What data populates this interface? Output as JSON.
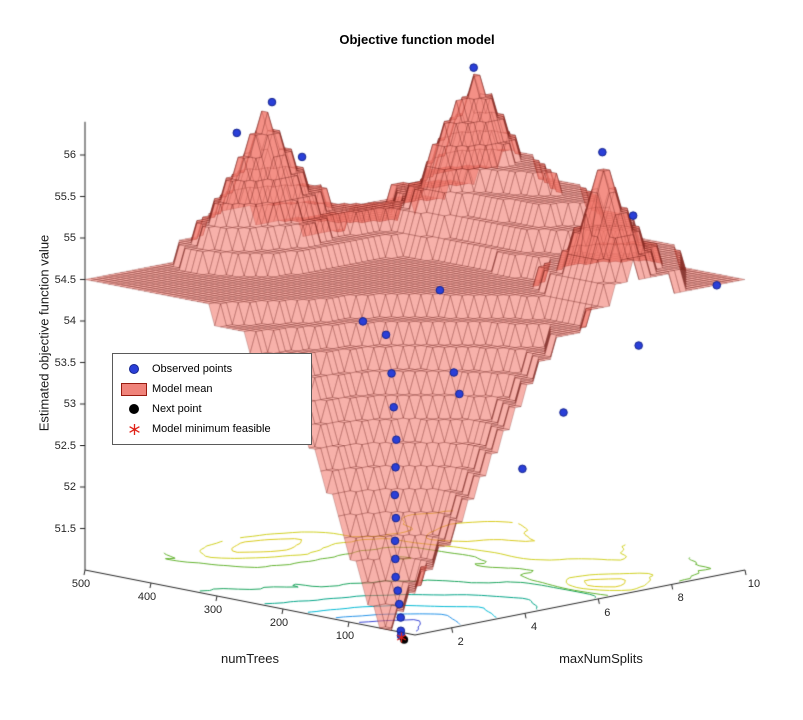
{
  "figure": {
    "title": "Objective function model",
    "background": "#ffffff"
  },
  "axes": {
    "xlabel": "numTrees",
    "ylabel": "maxNumSplits",
    "zlabel": "Estimated objective function value",
    "x_ticks": [
      500,
      400,
      300,
      200,
      100
    ],
    "y_ticks": [
      2,
      4,
      6,
      8,
      10
    ],
    "z_ticks": [
      51.5,
      52,
      52.5,
      53,
      53.5,
      54,
      54.5,
      55,
      55.5,
      56
    ],
    "x_range": [
      0,
      500
    ],
    "y_range": [
      1,
      10
    ],
    "z_range": [
      51,
      57
    ]
  },
  "legend": {
    "entries": [
      {
        "label": "Observed points",
        "marker": "blue-dot",
        "color": "#2a3fd8"
      },
      {
        "label": "Model mean",
        "marker": "patch",
        "color": "#f0837a"
      },
      {
        "label": "Next point",
        "marker": "black-dot",
        "color": "#000000"
      },
      {
        "label": "Model minimum feasible",
        "marker": "red-asterisk",
        "color": "#e02218"
      }
    ]
  },
  "chart_data": {
    "type": "surface",
    "title": "Objective function model",
    "xlabel": "numTrees",
    "ylabel": "maxNumSplits",
    "zlabel": "Estimated objective function value",
    "x_range": [
      0,
      500
    ],
    "y_range": [
      1,
      10
    ],
    "z_range": [
      51,
      57
    ],
    "grid": true,
    "legend_position": "left-middle",
    "x_grid": [
      0,
      50,
      100,
      150,
      200,
      250,
      300,
      350,
      400,
      450,
      500
    ],
    "y_grid": [
      1,
      2,
      3,
      4,
      5,
      6,
      7,
      8,
      9,
      10
    ],
    "z_values": [
      [
        51.6,
        50.9,
        51.9,
        52.9,
        53.7,
        54.1,
        54.35,
        54.5,
        54.5,
        54.5,
        54.5
      ],
      [
        52.1,
        51.6,
        52.4,
        53.2,
        53.9,
        54.3,
        54.5,
        54.5,
        54.5,
        54.5,
        54.5
      ],
      [
        52.9,
        52.6,
        53.1,
        53.6,
        54.1,
        54.45,
        54.5,
        54.5,
        54.5,
        54.6,
        54.5
      ],
      [
        53.7,
        53.3,
        53.7,
        54.05,
        54.35,
        54.5,
        54.5,
        54.5,
        54.8,
        55.4,
        54.8
      ],
      [
        54.25,
        53.95,
        54.15,
        54.4,
        54.5,
        54.5,
        54.5,
        54.5,
        55.1,
        56.3,
        55.0
      ],
      [
        54.45,
        54.25,
        54.45,
        54.5,
        54.5,
        54.5,
        54.55,
        54.5,
        54.9,
        55.5,
        54.8
      ],
      [
        54.9,
        56.15,
        54.9,
        54.55,
        54.6,
        54.5,
        54.5,
        54.6,
        55.0,
        54.8,
        54.6
      ],
      [
        54.6,
        55.1,
        54.7,
        54.8,
        55.1,
        55.2,
        55.3,
        55.9,
        54.9,
        54.7,
        54.6
      ],
      [
        54.5,
        54.65,
        54.85,
        55.05,
        55.3,
        55.45,
        55.6,
        56.6,
        55.35,
        55.0,
        54.8
      ],
      [
        54.5,
        54.5,
        54.6,
        54.8,
        55.0,
        55.15,
        55.3,
        55.5,
        55.15,
        54.9,
        54.6
      ]
    ],
    "observed_points": [
      [
        450,
        5.2,
        56.35
      ],
      [
        470,
        4.6,
        56.0
      ],
      [
        350,
        8.9,
        56.6
      ],
      [
        55,
        7.1,
        56.2
      ],
      [
        360,
        4.4,
        55.9
      ],
      [
        75,
        8.3,
        55.3
      ],
      [
        15,
        9.5,
        54.45
      ],
      [
        50,
        8.0,
        53.8
      ],
      [
        190,
        5.1,
        54.5
      ],
      [
        240,
        3.9,
        54.15
      ],
      [
        255,
        6.8,
        53.0
      ],
      [
        230,
        6.2,
        53.35
      ],
      [
        25,
        5.5,
        53.25
      ],
      [
        15,
        4.2,
        52.7
      ],
      [
        155,
        3.0,
        54.2
      ],
      [
        130,
        2.7,
        53.8
      ],
      [
        110,
        2.4,
        53.45
      ],
      [
        95,
        2.2,
        53.1
      ],
      [
        85,
        2.0,
        52.8
      ],
      [
        75,
        1.8,
        52.5
      ],
      [
        65,
        1.65,
        52.25
      ],
      [
        58,
        1.5,
        52.0
      ],
      [
        52,
        1.4,
        51.8
      ],
      [
        46,
        1.3,
        51.6
      ],
      [
        40,
        1.25,
        51.45
      ],
      [
        35,
        1.2,
        51.3
      ],
      [
        30,
        1.15,
        51.15
      ],
      [
        27,
        1.1,
        51.0
      ],
      [
        24,
        1.05,
        50.95
      ]
    ],
    "next_point": [
      22,
      1.1,
      50.9
    ],
    "model_min_feasible": [
      26,
      1.1,
      50.92
    ],
    "surface_color": "#f2796c",
    "surface_edge_color": "#5a0a05",
    "observed_color": "#2a3fd8",
    "observed_edge_color": "#12228e",
    "next_point_color": "#000000",
    "min_feasible_color": "#e02218",
    "axis_color": "#262626",
    "contour_levels": [
      51.6,
      52.3,
      53.1,
      53.9,
      54.44,
      54.56,
      54.95,
      55.5
    ],
    "contour_colors": [
      "#3a46d4",
      "#2492e8",
      "#00b9d4",
      "#00a487",
      "#18a35c",
      "#63b32f",
      "#cfd022",
      "#d9cb1d"
    ]
  }
}
